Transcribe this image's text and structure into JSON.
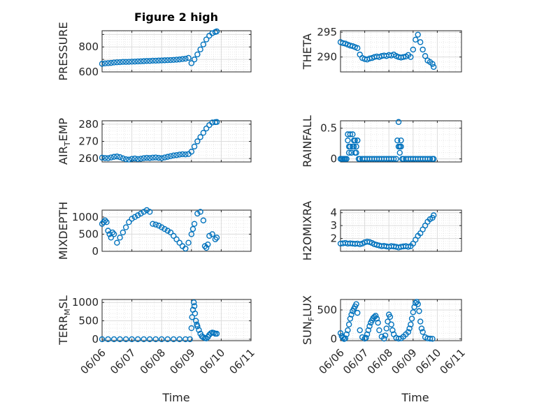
{
  "figure": {
    "title": "Figure 2 high"
  },
  "chart_data": [
    {
      "id": "pressure",
      "type": "scatter",
      "ylabel": "PRESSURE",
      "ylim": [
        600,
        930
      ],
      "yticks": [
        600,
        700,
        800,
        900
      ],
      "ytick_labels": [
        "600",
        "",
        "800",
        ""
      ],
      "xlim": [
        0,
        5
      ],
      "xtick_labels": [
        "06/06",
        "06/07",
        "06/08",
        "06/09",
        "06/10",
        "06/11"
      ],
      "x": [
        0,
        0.1,
        0.2,
        0.3,
        0.4,
        0.5,
        0.6,
        0.7,
        0.8,
        0.9,
        1.0,
        1.1,
        1.2,
        1.3,
        1.4,
        1.5,
        1.6,
        1.7,
        1.8,
        1.9,
        2.0,
        2.1,
        2.2,
        2.3,
        2.4,
        2.5,
        2.6,
        2.7,
        2.8,
        2.9,
        3.0,
        3.1,
        3.2,
        3.3,
        3.4,
        3.5,
        3.6,
        3.7,
        3.8,
        3.85
      ],
      "y": [
        665,
        668,
        670,
        672,
        675,
        677,
        678,
        680,
        680,
        681,
        682,
        683,
        684,
        685,
        686,
        688,
        688,
        690,
        690,
        691,
        692,
        693,
        694,
        695,
        696,
        698,
        700,
        703,
        706,
        712,
        670,
        700,
        740,
        780,
        820,
        860,
        890,
        910,
        920,
        925
      ]
    },
    {
      "id": "theta",
      "type": "scatter",
      "ylabel": "THETA",
      "ylim": [
        287,
        295.3
      ],
      "yticks": [
        290,
        295
      ],
      "ytick_labels": [
        "290",
        "295"
      ],
      "xlim": [
        0,
        5
      ],
      "x": [
        0,
        0.1,
        0.2,
        0.3,
        0.4,
        0.5,
        0.6,
        0.7,
        0.8,
        0.9,
        1.0,
        1.1,
        1.2,
        1.3,
        1.4,
        1.5,
        1.6,
        1.7,
        1.8,
        1.9,
        2.0,
        2.1,
        2.2,
        2.3,
        2.4,
        2.5,
        2.6,
        2.7,
        2.8,
        2.9,
        3.0,
        3.1,
        3.2,
        3.3,
        3.4,
        3.5,
        3.6,
        3.7,
        3.8,
        3.85
      ],
      "y": [
        293,
        292.8,
        292.7,
        292.5,
        292.3,
        292.2,
        292.0,
        291.8,
        290.5,
        289.8,
        289.6,
        289.5,
        289.7,
        289.8,
        290.0,
        290.1,
        290.0,
        290.2,
        290.3,
        290.2,
        290.4,
        290.3,
        290.5,
        290.2,
        290.0,
        289.9,
        290.0,
        290.1,
        290.4,
        290.0,
        291.5,
        293.5,
        294.5,
        293.0,
        291.5,
        290.2,
        289.3,
        289.0,
        288.6,
        288.0
      ]
    },
    {
      "id": "air_temp",
      "type": "scatter",
      "ylabel": "AIR_TEMP",
      "ylim": [
        258,
        282
      ],
      "yticks": [
        260,
        270,
        280
      ],
      "ytick_labels": [
        "260",
        "270",
        "280"
      ],
      "xlim": [
        0,
        5
      ],
      "x": [
        0,
        0.1,
        0.2,
        0.3,
        0.4,
        0.5,
        0.6,
        0.7,
        0.8,
        0.9,
        1.0,
        1.1,
        1.2,
        1.3,
        1.4,
        1.5,
        1.6,
        1.7,
        1.8,
        1.9,
        2.0,
        2.1,
        2.2,
        2.3,
        2.4,
        2.5,
        2.6,
        2.7,
        2.8,
        2.9,
        3.0,
        3.1,
        3.2,
        3.3,
        3.4,
        3.5,
        3.6,
        3.7,
        3.8,
        3.85
      ],
      "y": [
        260.5,
        260.3,
        260.2,
        260.6,
        261.0,
        261.2,
        260.8,
        260.1,
        259.6,
        259.4,
        259.8,
        260.0,
        259.7,
        259.9,
        260.2,
        260.4,
        260.3,
        260.5,
        260.6,
        260.4,
        260.2,
        260.6,
        261.0,
        261.4,
        261.8,
        262.0,
        262.3,
        262.5,
        262.4,
        262.6,
        264,
        267,
        270,
        272.5,
        275,
        277.5,
        279.5,
        281,
        281.2,
        281.3
      ]
    },
    {
      "id": "rainfall",
      "type": "scatter",
      "ylabel": "RAINFALL",
      "ylim": [
        -0.05,
        0.62
      ],
      "yticks": [
        0,
        0.5
      ],
      "ytick_labels": [
        "0",
        "0.5"
      ],
      "xlim": [
        0,
        5
      ],
      "x": [
        0,
        0.05,
        0.1,
        0.15,
        0.2,
        0.25,
        0.3,
        0.35,
        0.4,
        0.45,
        0.5,
        0.55,
        0.6,
        0.65,
        0.7,
        0.75,
        0.8,
        0.9,
        1.0,
        1.1,
        1.2,
        1.3,
        1.4,
        1.5,
        1.6,
        1.7,
        1.8,
        1.9,
        2.0,
        2.1,
        2.2,
        2.3,
        2.35,
        2.4,
        2.45,
        2.5,
        2.55,
        2.6,
        2.7,
        2.8,
        2.9,
        3.0,
        3.1,
        3.2,
        3.3,
        3.4,
        3.5,
        3.6,
        3.7,
        3.8,
        3.85,
        0.3,
        0.4,
        0.5,
        0.55,
        0.6,
        0.65,
        0.7,
        2.4,
        2.45,
        2.5,
        0.35,
        0.45
      ],
      "y": [
        0,
        0,
        0,
        0,
        0,
        0,
        0.4,
        0.1,
        0.4,
        0.1,
        0.2,
        0.3,
        0.1,
        0.2,
        0.3,
        0,
        0,
        0,
        0,
        0,
        0,
        0,
        0,
        0,
        0,
        0,
        0,
        0,
        0,
        0,
        0,
        0,
        0.3,
        0.6,
        0.2,
        0.3,
        0,
        0,
        0,
        0,
        0,
        0,
        0,
        0,
        0,
        0,
        0,
        0,
        0,
        0,
        0,
        0.3,
        0.2,
        0.4,
        0.2,
        0.3,
        0.1,
        0.3,
        0.2,
        0.1,
        0.2,
        0.2,
        0.1
      ]
    },
    {
      "id": "mixdepth",
      "type": "scatter",
      "ylabel": "MIXDEPTH",
      "ylim": [
        0,
        1200
      ],
      "yticks": [
        0,
        500,
        1000
      ],
      "ytick_labels": [
        "0",
        "500",
        "1000"
      ],
      "xlim": [
        0,
        5
      ],
      "x": [
        0,
        0.05,
        0.1,
        0.15,
        0.2,
        0.25,
        0.3,
        0.35,
        0.4,
        0.5,
        0.6,
        0.7,
        0.8,
        0.9,
        1.0,
        1.1,
        1.2,
        1.3,
        1.4,
        1.5,
        1.6,
        1.7,
        1.8,
        1.9,
        2.0,
        2.1,
        2.2,
        2.3,
        2.4,
        2.5,
        2.6,
        2.7,
        2.8,
        2.9,
        3.0,
        3.05,
        3.1,
        3.2,
        3.3,
        3.4,
        3.45,
        3.5,
        3.55,
        3.6,
        3.7,
        3.8,
        3.85
      ],
      "y": [
        800,
        850,
        900,
        850,
        600,
        500,
        400,
        550,
        500,
        250,
        400,
        550,
        700,
        850,
        950,
        1000,
        1050,
        1100,
        1150,
        1200,
        1150,
        800,
        780,
        750,
        700,
        650,
        600,
        550,
        450,
        350,
        250,
        150,
        80,
        250,
        500,
        650,
        800,
        1100,
        1150,
        900,
        150,
        100,
        200,
        450,
        500,
        350,
        400
      ]
    },
    {
      "id": "h2omixra",
      "type": "scatter",
      "ylabel": "H2OMIXRA",
      "ylim": [
        1,
        4.2
      ],
      "yticks": [
        2,
        3,
        4
      ],
      "ytick_labels": [
        "2",
        "3",
        "4"
      ],
      "xlim": [
        0,
        5
      ],
      "x": [
        0,
        0.1,
        0.2,
        0.3,
        0.4,
        0.5,
        0.6,
        0.7,
        0.8,
        0.9,
        1.0,
        1.1,
        1.2,
        1.3,
        1.4,
        1.5,
        1.6,
        1.7,
        1.8,
        1.9,
        2.0,
        2.1,
        2.2,
        2.3,
        2.4,
        2.5,
        2.6,
        2.7,
        2.8,
        2.9,
        3.0,
        3.1,
        3.2,
        3.3,
        3.4,
        3.5,
        3.6,
        3.7,
        3.8,
        3.85
      ],
      "y": [
        1.6,
        1.62,
        1.65,
        1.6,
        1.62,
        1.6,
        1.58,
        1.6,
        1.55,
        1.6,
        1.7,
        1.75,
        1.72,
        1.65,
        1.55,
        1.5,
        1.45,
        1.4,
        1.42,
        1.38,
        1.35,
        1.4,
        1.38,
        1.35,
        1.3,
        1.35,
        1.38,
        1.4,
        1.35,
        1.4,
        1.6,
        1.9,
        2.2,
        2.4,
        2.7,
        3.0,
        3.3,
        3.5,
        3.6,
        3.8
      ]
    },
    {
      "id": "terr_msl",
      "type": "scatter",
      "ylabel": "TERR_MSL",
      "ylim": [
        -40,
        1080
      ],
      "yticks": [
        0,
        500,
        1000
      ],
      "ytick_labels": [
        "0",
        "500",
        "1000"
      ],
      "xlim": [
        0,
        5
      ],
      "x": [
        0,
        0.2,
        0.4,
        0.6,
        0.8,
        1.0,
        1.2,
        1.4,
        1.6,
        1.8,
        2.0,
        2.2,
        2.4,
        2.6,
        2.8,
        2.95,
        3.0,
        3.02,
        3.05,
        3.08,
        3.1,
        3.12,
        3.15,
        3.18,
        3.2,
        3.25,
        3.3,
        3.35,
        3.4,
        3.45,
        3.5,
        3.55,
        3.6,
        3.65,
        3.7,
        3.75,
        3.8,
        3.85
      ],
      "y": [
        0,
        0,
        0,
        0,
        0,
        0,
        0,
        0,
        0,
        0,
        0,
        0,
        0,
        0,
        0,
        0,
        300,
        600,
        800,
        1000,
        900,
        700,
        500,
        400,
        350,
        250,
        150,
        80,
        50,
        30,
        20,
        60,
        120,
        160,
        180,
        170,
        150,
        150
      ]
    },
    {
      "id": "sun_flux",
      "type": "scatter",
      "ylabel": "SUN_FLUX",
      "ylim": [
        -30,
        680
      ],
      "yticks": [
        0,
        500
      ],
      "ytick_labels": [
        "0",
        "500"
      ],
      "xlim": [
        0,
        5
      ],
      "x": [
        0,
        0.05,
        0.1,
        0.15,
        0.2,
        0.25,
        0.3,
        0.35,
        0.4,
        0.45,
        0.5,
        0.55,
        0.6,
        0.65,
        0.7,
        0.8,
        0.9,
        1.0,
        1.05,
        1.1,
        1.15,
        1.2,
        1.25,
        1.3,
        1.35,
        1.4,
        1.45,
        1.5,
        1.55,
        1.6,
        1.7,
        1.8,
        1.85,
        1.9,
        1.95,
        2.0,
        2.05,
        2.1,
        2.15,
        2.2,
        2.3,
        2.4,
        2.5,
        2.6,
        2.7,
        2.8,
        2.85,
        2.9,
        2.95,
        3.0,
        3.05,
        3.1,
        3.15,
        3.2,
        3.25,
        3.3,
        3.35,
        3.4,
        3.5,
        3.6,
        3.7,
        3.8
      ],
      "y": [
        100,
        50,
        20,
        0,
        10,
        80,
        150,
        250,
        350,
        420,
        480,
        520,
        560,
        600,
        450,
        150,
        30,
        5,
        20,
        80,
        150,
        220,
        280,
        320,
        360,
        380,
        400,
        350,
        280,
        150,
        40,
        5,
        60,
        180,
        300,
        420,
        380,
        250,
        150,
        80,
        20,
        5,
        10,
        40,
        80,
        120,
        180,
        250,
        350,
        460,
        550,
        620,
        640,
        600,
        480,
        300,
        180,
        120,
        30,
        10,
        5,
        2
      ]
    }
  ],
  "xaxis": {
    "label": "Time",
    "tick_labels": [
      "06/06",
      "06/07",
      "06/08",
      "06/09",
      "06/10",
      "06/11"
    ]
  }
}
